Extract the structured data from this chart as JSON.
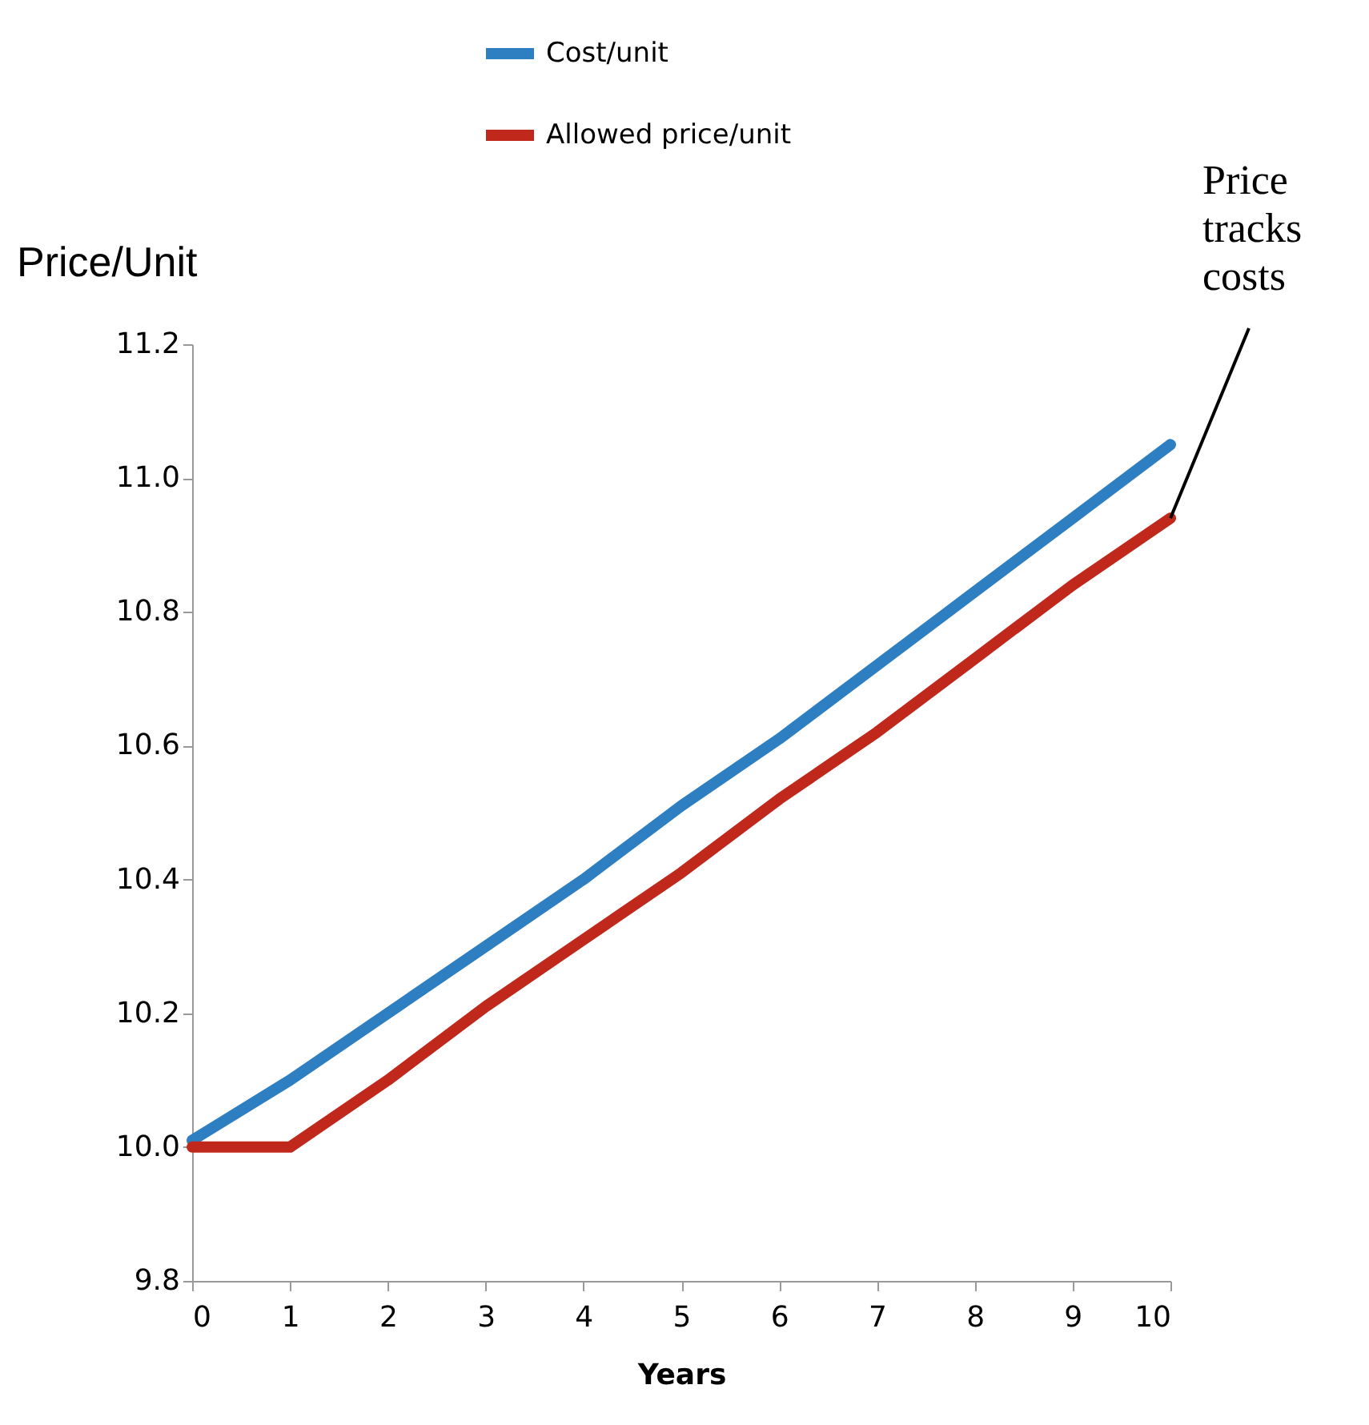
{
  "chart_data": {
    "type": "line",
    "ylabel": "Price/Unit",
    "xlabel": "Years",
    "x": [
      0,
      1,
      2,
      3,
      4,
      5,
      6,
      7,
      8,
      9,
      10
    ],
    "series": [
      {
        "name": "Cost/unit",
        "color": "#2e7fc1",
        "values": [
          10.01,
          10.1,
          10.2,
          10.3,
          10.4,
          10.51,
          10.61,
          10.72,
          10.83,
          10.94,
          11.05
        ]
      },
      {
        "name": "Allowed price/unit",
        "color": "#c0281c",
        "values": [
          10.0,
          10.0,
          10.1,
          10.21,
          10.31,
          10.41,
          10.52,
          10.62,
          10.73,
          10.84,
          10.94
        ]
      }
    ],
    "xlim": [
      0,
      10
    ],
    "xticks": [
      0,
      1,
      2,
      3,
      4,
      5,
      6,
      7,
      8,
      9,
      10
    ],
    "ylim": [
      9.8,
      11.2
    ],
    "yticks": [
      9.8,
      {
        "value": 10,
        "label": "10.0"
      },
      10.2,
      10.4,
      10.6,
      10.8,
      {
        "value": 11,
        "label": "11.0"
      },
      11.2
    ],
    "annotations": [
      {
        "text": "Price tracks costs",
        "x": 10,
        "y": 10.94
      }
    ],
    "grid": false,
    "legend": "top",
    "marker": "none",
    "line_style": "solid"
  }
}
